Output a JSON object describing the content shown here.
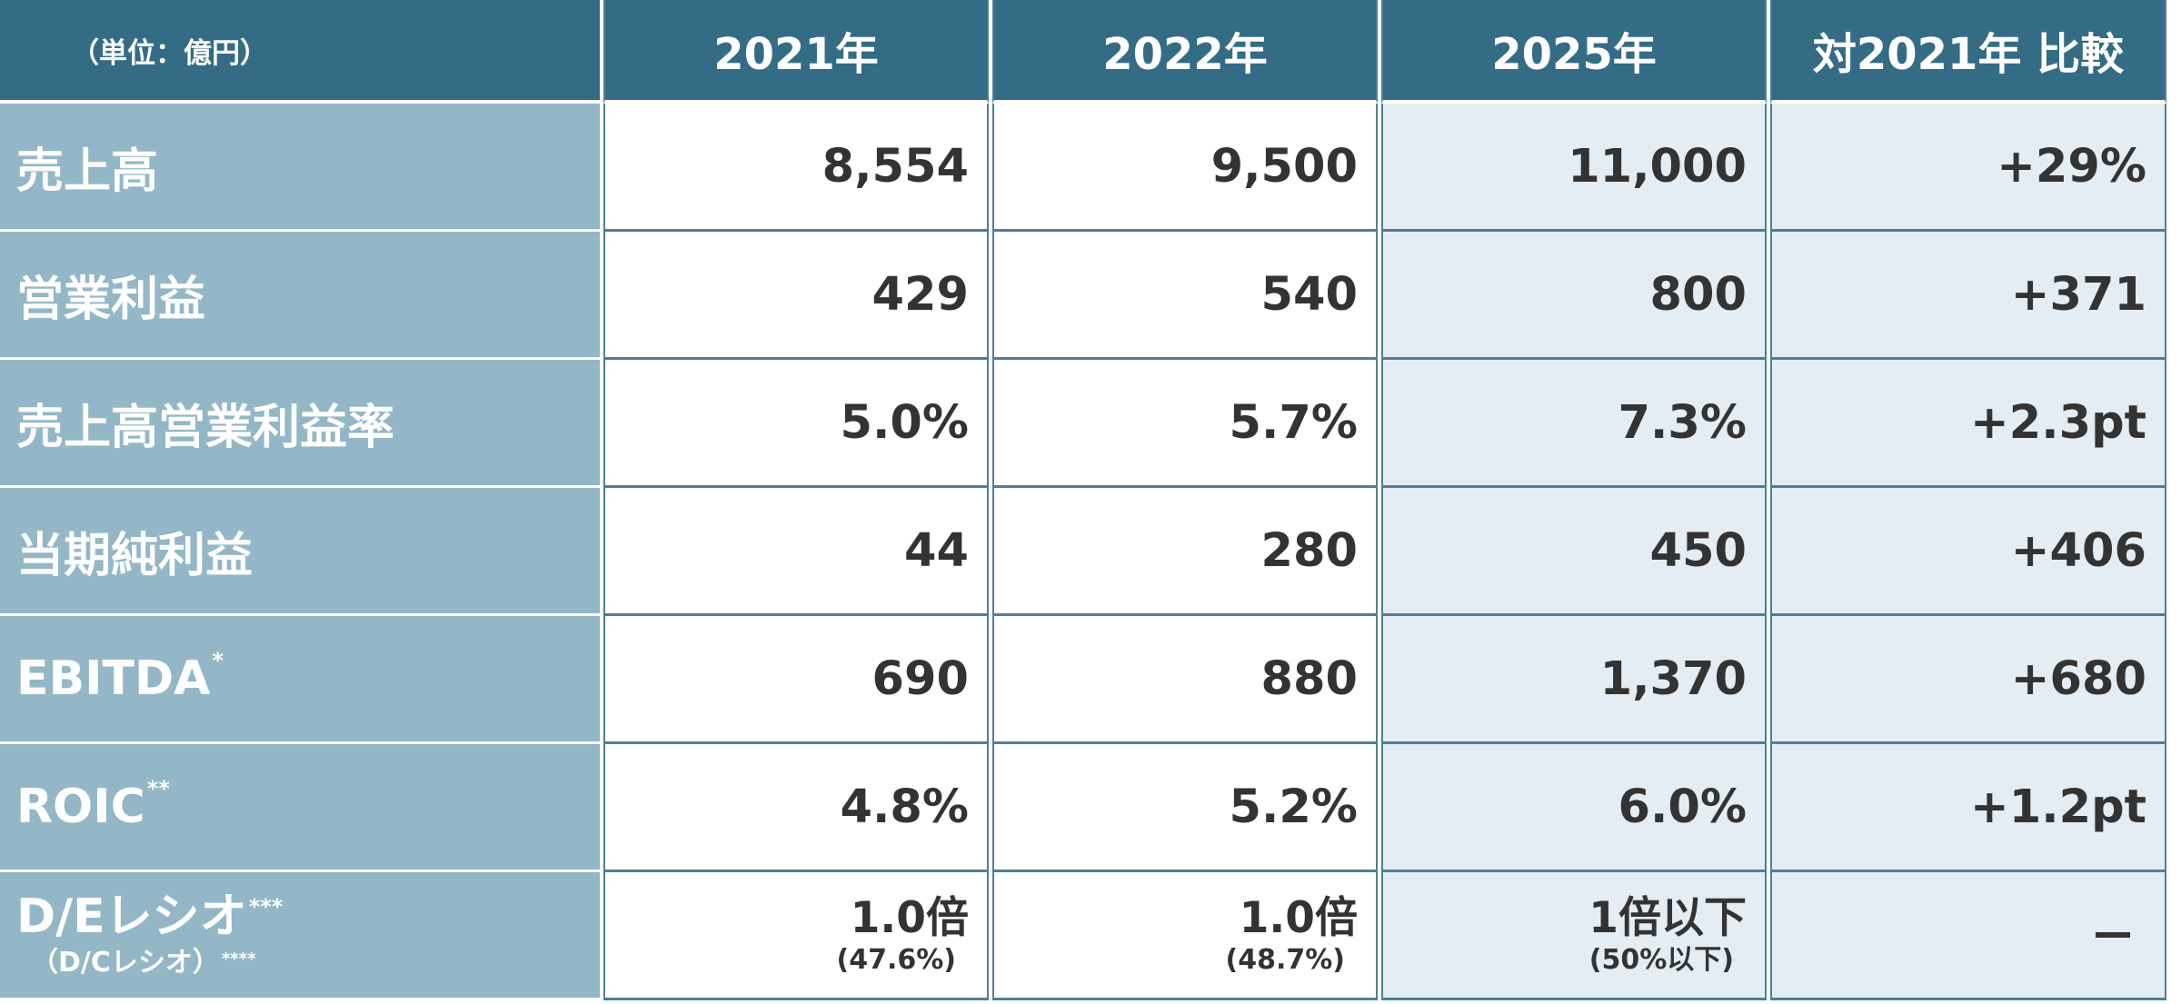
{
  "header": {
    "unit": "（単位：億円）",
    "col_2021": "2021年",
    "col_2022": "2022年",
    "col_2025": "2025年",
    "col_compare": "対2021年 比較"
  },
  "rows": [
    {
      "label": "売上高",
      "sup": "",
      "v2021": "8,554",
      "v2022": "9,500",
      "v2025": "11,000",
      "compare": "+29%"
    },
    {
      "label": "営業利益",
      "sup": "",
      "v2021": "429",
      "v2022": "540",
      "v2025": "800",
      "compare": "+371"
    },
    {
      "label": "売上高営業利益率",
      "sup": "",
      "v2021": "5.0%",
      "v2022": "5.7%",
      "v2025": "7.3%",
      "compare": "+2.3pt"
    },
    {
      "label": "当期純利益",
      "sup": "",
      "v2021": "44",
      "v2022": "280",
      "v2025": "450",
      "compare": "+406"
    },
    {
      "label": "EBITDA",
      "sup": "*",
      "v2021": "690",
      "v2022": "880",
      "v2025": "1,370",
      "compare": "+680"
    },
    {
      "label": "ROIC",
      "sup": "**",
      "v2021": "4.8%",
      "v2022": "5.2%",
      "v2025": "6.0%",
      "compare": "+1.2pt"
    },
    {
      "label": "D/Eレシオ",
      "sup": "***",
      "sublabel": "（D/Cレシオ）",
      "subsup": "****",
      "v2021": "1.0倍",
      "v2021_sub": "(47.6%)",
      "v2022": "1.0倍",
      "v2022_sub": "(48.7%)",
      "v2025": "1倍以下",
      "v2025_sub": "(50%以下)",
      "compare": "—"
    }
  ],
  "colors": {
    "header_bg": "#346c86",
    "label_bg": "#93b7c6",
    "forecast_bg": "#e4edf3",
    "border": "#4f7f98",
    "text": "#333333"
  }
}
